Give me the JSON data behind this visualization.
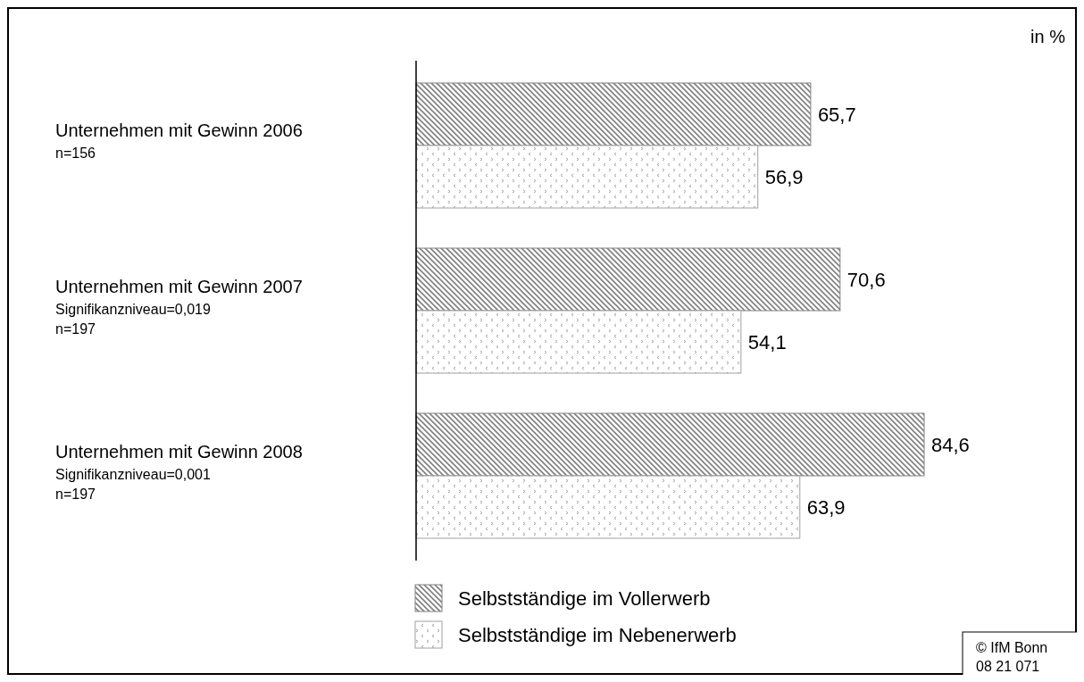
{
  "chart_data": {
    "type": "bar",
    "orientation": "horizontal",
    "categories": [
      "Unternehmen mit Gewinn 2006\nn=156",
      "Unternehmen mit Gewinn 2007\nSignifikanzniveau=0,019\nn=197",
      "Unternehmen mit Gewinn 2008\nSignifikanzniveau=0,001\nn=197"
    ],
    "series": [
      {
        "name": "Selbstständige im Vollerwerb",
        "color": "#808080",
        "values": [
          65.7,
          70.6,
          84.6
        ],
        "value_labels": [
          "65,7",
          "70,6",
          "84,6"
        ]
      },
      {
        "name": "Selbstständige im Nebenerwerb",
        "color": "#a0a0a0",
        "values": [
          56.9,
          54.1,
          63.9
        ],
        "value_labels": [
          "56,9",
          "54,1",
          "63,9"
        ]
      }
    ],
    "legend": "bottom",
    "annotations": [
      "in %",
      "© IfM Bonn\n08 21 071"
    ]
  }
}
